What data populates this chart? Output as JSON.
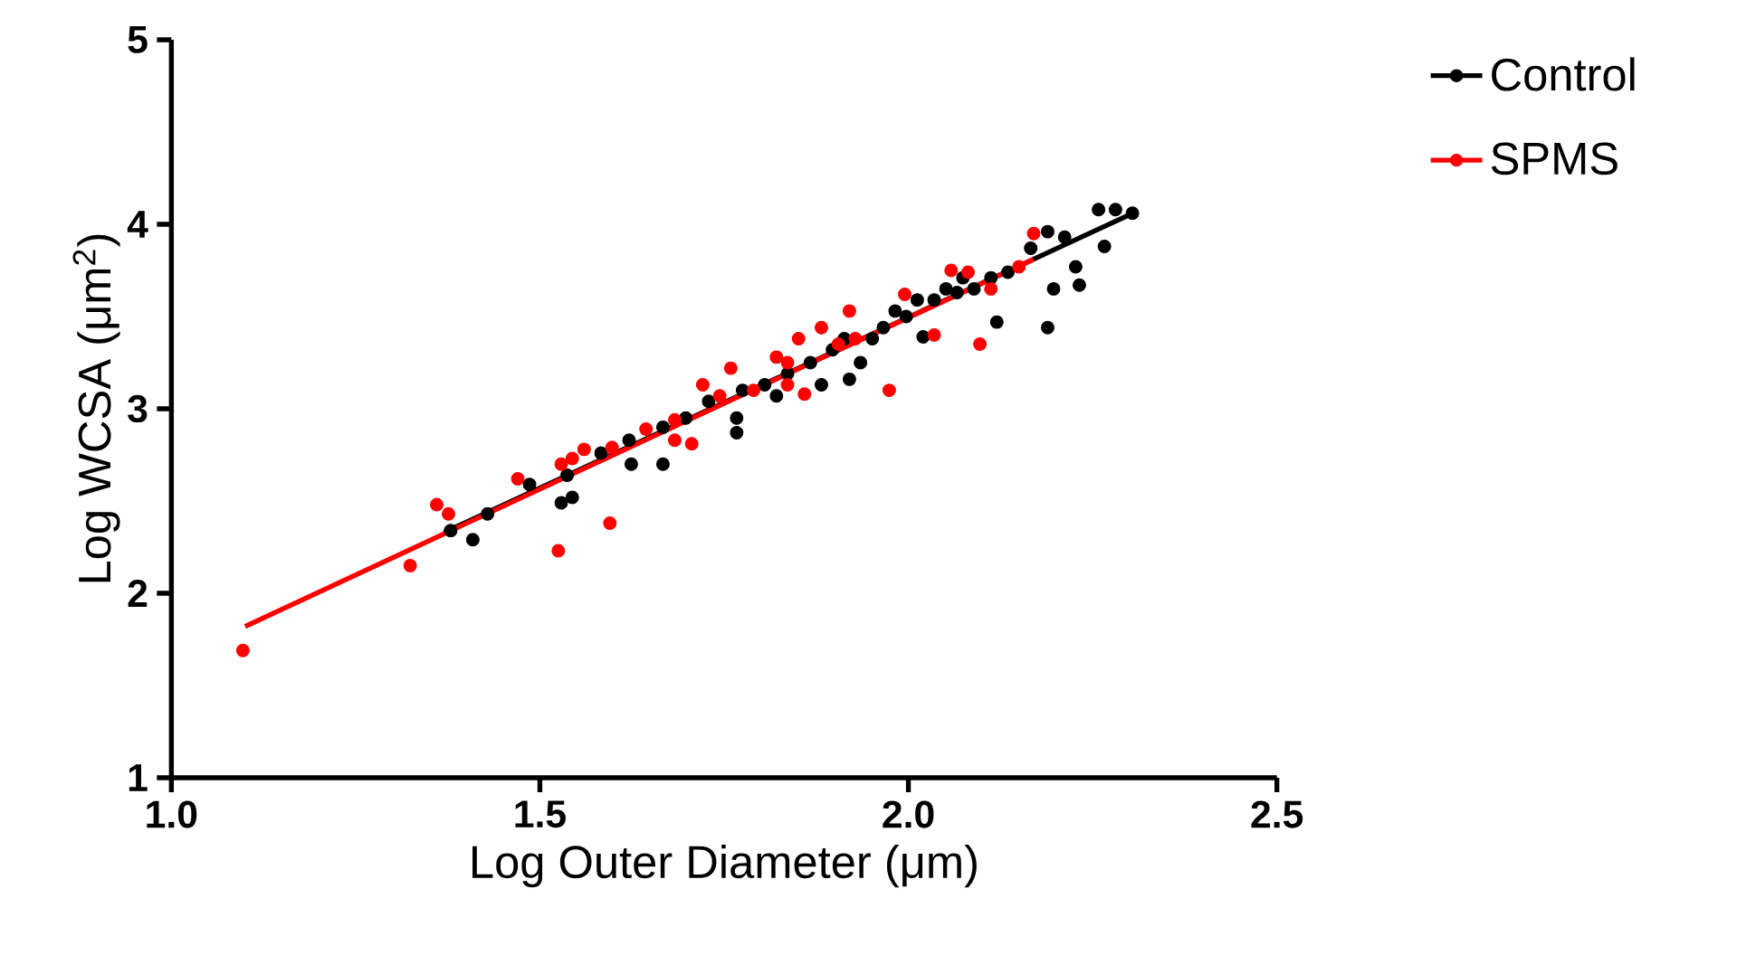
{
  "chart_data": {
    "type": "scatter",
    "xlabel": "Log Outer Diameter (μm)",
    "ylabel": "Log WCSA (μm$^{2}$)",
    "xlim": [
      1.0,
      2.5
    ],
    "ylim": [
      1,
      5
    ],
    "xticks": [
      {
        "value": 1.0,
        "label": "1.0"
      },
      {
        "value": 1.5,
        "label": "1.5"
      },
      {
        "value": 2.0,
        "label": "2.0"
      },
      {
        "value": 2.5,
        "label": "2.5"
      }
    ],
    "yticks": [
      1,
      2,
      3,
      4,
      5
    ],
    "grid": false,
    "legend": "top right",
    "series": [
      {
        "name": "Control",
        "color": "#000000",
        "marker": "circle",
        "x": [
          1.379,
          1.409,
          1.429,
          1.486,
          1.529,
          1.544,
          1.537,
          1.583,
          1.621,
          1.624,
          1.667,
          1.667,
          1.698,
          1.729,
          1.767,
          1.767,
          1.775,
          1.805,
          1.821,
          1.836,
          1.867,
          1.882,
          1.897,
          1.913,
          1.92,
          1.935,
          1.951,
          1.966,
          1.982,
          1.997,
          2.012,
          2.02,
          2.035,
          2.051,
          2.066,
          2.074,
          2.089,
          2.112,
          2.12,
          2.135,
          2.166,
          2.189,
          2.189,
          2.197,
          2.212,
          2.227,
          2.232,
          2.258,
          2.266,
          2.281,
          2.304
        ],
        "values": [
          2.34,
          2.29,
          2.43,
          2.59,
          2.49,
          2.52,
          2.64,
          2.76,
          2.83,
          2.7,
          2.7,
          2.9,
          2.95,
          3.04,
          2.95,
          2.87,
          3.1,
          3.13,
          3.07,
          3.19,
          3.25,
          3.13,
          3.32,
          3.38,
          3.16,
          3.25,
          3.38,
          3.44,
          3.53,
          3.5,
          3.59,
          3.39,
          3.59,
          3.65,
          3.63,
          3.71,
          3.65,
          3.71,
          3.47,
          3.74,
          3.87,
          3.96,
          3.44,
          3.65,
          3.93,
          3.77,
          3.67,
          4.08,
          3.88,
          4.08,
          4.06
        ]
      },
      {
        "name": "SPMS",
        "color": "#ff0000",
        "marker": "circle",
        "x": [
          1.097,
          1.324,
          1.36,
          1.376,
          1.525,
          1.595,
          1.529,
          1.544,
          1.56,
          1.598,
          1.644,
          1.683,
          1.706,
          1.721,
          1.759,
          1.79,
          1.821,
          1.836,
          1.859,
          1.882,
          1.905,
          1.92,
          1.974,
          2.035,
          2.081,
          2.097,
          2.112,
          2.15,
          2.17,
          1.47,
          1.683,
          1.744,
          1.851,
          1.928,
          1.995,
          2.058,
          1.836
        ],
        "values": [
          1.69,
          2.15,
          2.48,
          2.43,
          2.23,
          2.38,
          2.7,
          2.73,
          2.78,
          2.79,
          2.89,
          2.94,
          2.81,
          3.13,
          3.22,
          3.1,
          3.28,
          3.25,
          3.08,
          3.44,
          3.35,
          3.53,
          3.1,
          3.4,
          3.74,
          3.35,
          3.65,
          3.77,
          3.95,
          2.62,
          2.83,
          3.07,
          3.38,
          3.38,
          3.62,
          3.75,
          3.13
        ]
      },
      {
        "color": "#000000",
        "type": "line",
        "marker": "none",
        "x": [
          1.37,
          2.31
        ],
        "values": [
          2.33,
          4.07
        ]
      },
      {
        "color": "#ff0000",
        "type": "line",
        "marker": "none",
        "x": [
          1.1,
          2.17
        ],
        "values": [
          1.82,
          3.81
        ]
      }
    ]
  }
}
